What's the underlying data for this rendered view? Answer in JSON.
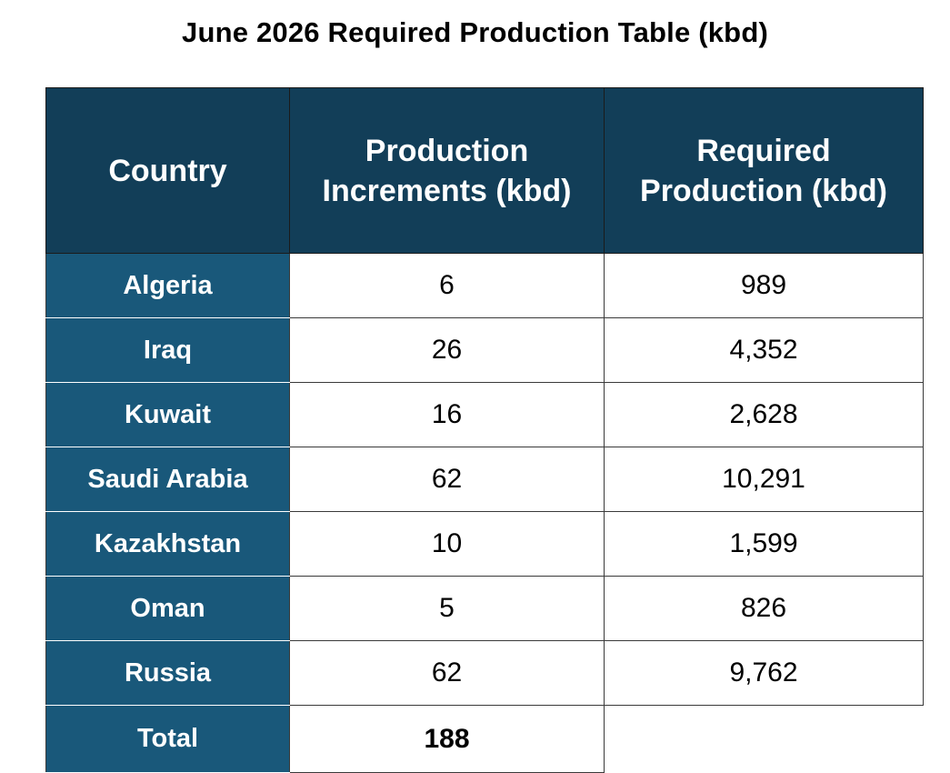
{
  "title": "June 2026 Required Production Table (kbd)",
  "table": {
    "headers": [
      "Country",
      "Production\nIncrements (kbd)",
      "Required\nProduction (kbd)"
    ],
    "rows": [
      {
        "country": "Algeria",
        "increment": "6",
        "required": "989"
      },
      {
        "country": "Iraq",
        "increment": "26",
        "required": "4,352"
      },
      {
        "country": "Kuwait",
        "increment": "16",
        "required": "2,628"
      },
      {
        "country": "Saudi Arabia",
        "increment": "62",
        "required": "10,291"
      },
      {
        "country": "Kazakhstan",
        "increment": "10",
        "required": "1,599"
      },
      {
        "country": "Oman",
        "increment": "5",
        "required": "826"
      },
      {
        "country": "Russia",
        "increment": "62",
        "required": "9,762"
      }
    ],
    "total": {
      "label": "Total",
      "increment": "188"
    }
  },
  "colors": {
    "header_bg": "#123e58",
    "country_bg": "#19587a",
    "text_light": "#ffffff",
    "text_dark": "#000000"
  }
}
